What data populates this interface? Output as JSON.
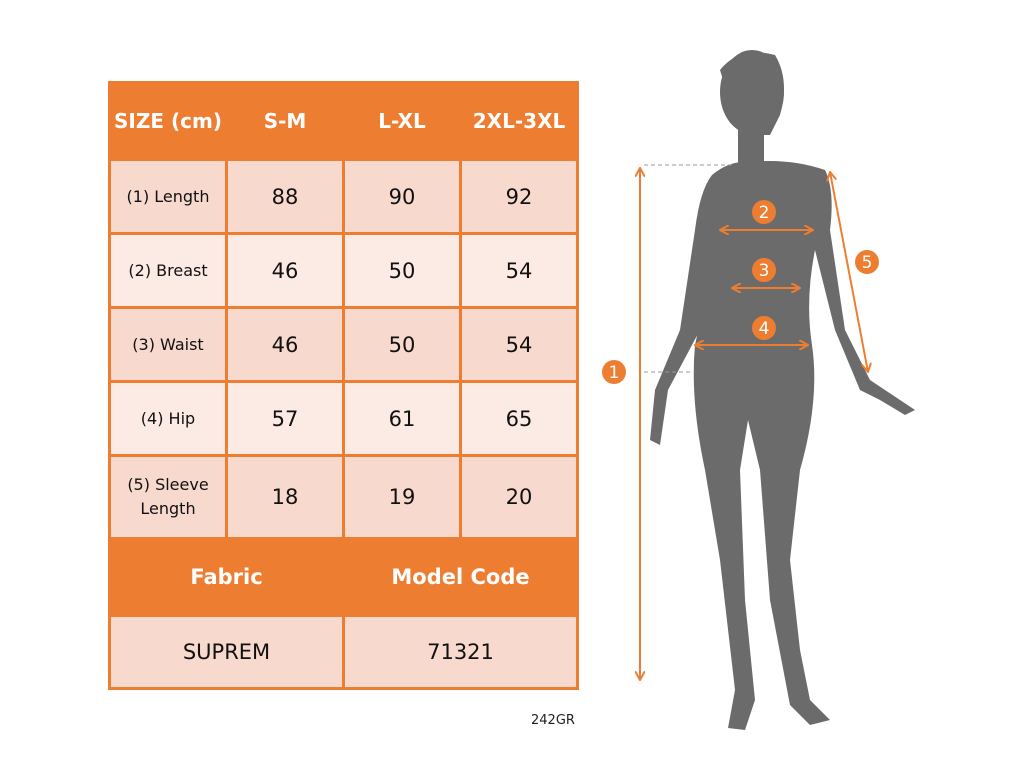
{
  "table": {
    "header": [
      "SIZE (cm)",
      "S-M",
      "L-XL",
      "2XL-3XL"
    ],
    "rows": [
      {
        "label": "(1) Length",
        "values": [
          "88",
          "90",
          "92"
        ]
      },
      {
        "label": "(2) Breast",
        "values": [
          "46",
          "50",
          "54"
        ]
      },
      {
        "label": "(3) Waist",
        "values": [
          "46",
          "50",
          "54"
        ]
      },
      {
        "label": "(4) Hip",
        "values": [
          "57",
          "61",
          "65"
        ]
      },
      {
        "label": "(5) Sleeve Length",
        "values": [
          "18",
          "19",
          "20"
        ]
      }
    ],
    "footer_headers": [
      "Fabric",
      "Model Code"
    ],
    "footer_values": [
      "SUPREM",
      "71321"
    ]
  },
  "product_code": "242GR",
  "figure": {
    "markers": [
      "1",
      "2",
      "3",
      "4",
      "5"
    ]
  },
  "colors": {
    "accent": "#ED7D31",
    "silhouette": "#6B6B6B"
  }
}
